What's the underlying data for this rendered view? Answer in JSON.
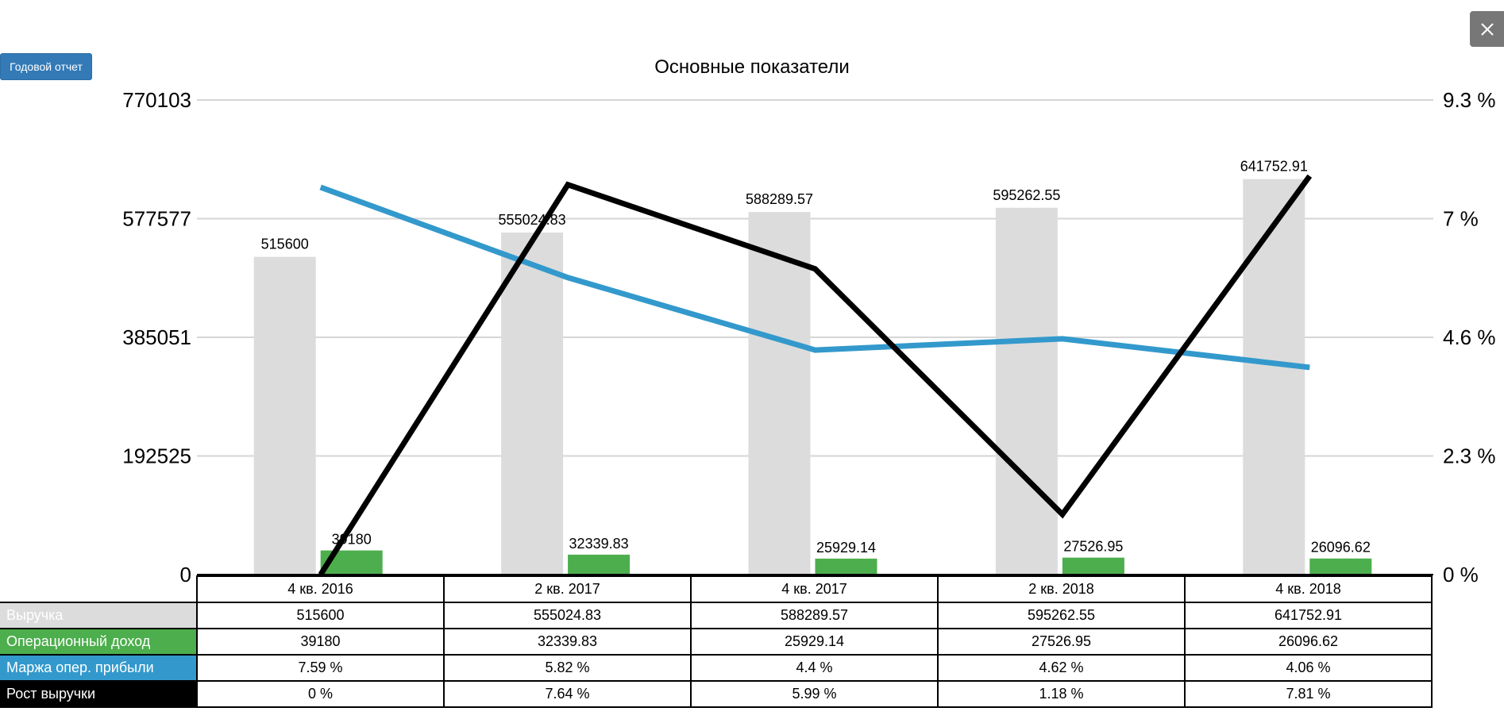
{
  "toolbar": {
    "annual_report_label": "Годовой отчет"
  },
  "icons": {
    "close": "close-icon"
  },
  "colors": {
    "revenue": "#dcdcdc",
    "operating_income": "#4cae4c",
    "margin": "#3399cc",
    "growth": "#000000",
    "grid": "#d6d6d6"
  },
  "chart_data": {
    "type": "bar",
    "title": "Основные показатели",
    "categories": [
      "4 кв. 2016",
      "2 кв. 2017",
      "4 кв. 2017",
      "2 кв. 2018",
      "4 кв. 2018"
    ],
    "left_axis": {
      "ticks": [
        "0",
        "192525",
        "385051",
        "577577",
        "770103"
      ],
      "ylim": [
        0,
        770103
      ]
    },
    "right_axis": {
      "ticks": [
        "0 %",
        "2.3 %",
        "4.6 %",
        "7 %",
        "9.3 %"
      ],
      "ylim": [
        0,
        9.3
      ]
    },
    "grid": true,
    "series": [
      {
        "name": "Выручка",
        "kind": "bar",
        "axis": "left",
        "values": [
          515600,
          555024.83,
          588289.57,
          595262.55,
          641752.91
        ],
        "labels": [
          "515600",
          "555024.83",
          "588289.57",
          "595262.55",
          "641752.91"
        ]
      },
      {
        "name": "Операционный доход",
        "kind": "bar",
        "axis": "left",
        "values": [
          39180,
          32339.83,
          25929.14,
          27526.95,
          26096.62
        ],
        "labels": [
          "39180",
          "32339.83",
          "25929.14",
          "27526.95",
          "26096.62"
        ]
      },
      {
        "name": "Маржа опер. прибыли",
        "kind": "line",
        "axis": "right",
        "values": [
          7.59,
          5.82,
          4.4,
          4.62,
          4.06
        ],
        "labels": [
          "7.59 %",
          "5.82 %",
          "4.4 %",
          "4.62 %",
          "4.06 %"
        ]
      },
      {
        "name": "Рост выручки",
        "kind": "line",
        "axis": "right",
        "values": [
          0,
          7.64,
          5.99,
          1.18,
          7.81
        ],
        "labels": [
          "0 %",
          "7.64 %",
          "5.99 %",
          "1.18 %",
          "7.81 %"
        ]
      }
    ]
  }
}
